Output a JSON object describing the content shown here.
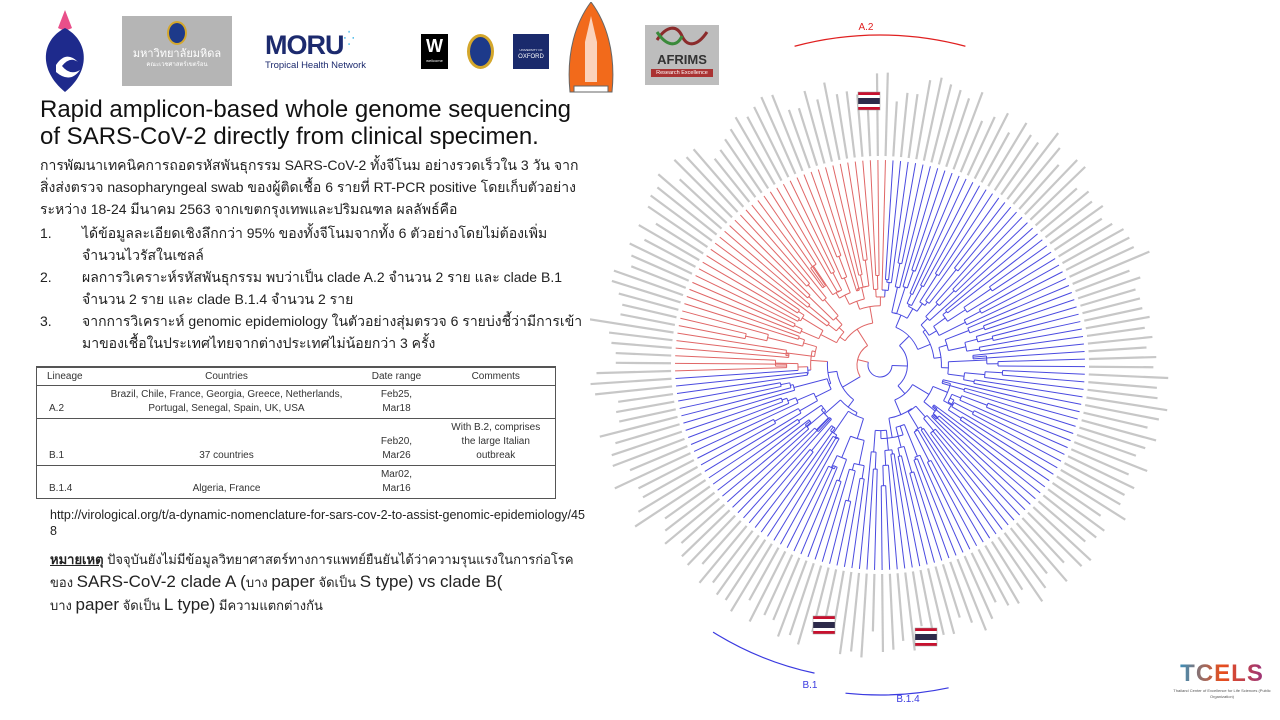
{
  "logos": {
    "mahidol_text": "มหาวิทยาลัยมหิดล",
    "mahidol_sub": "คณะเวชศาสตร์เขตร้อน",
    "moru": "MORU",
    "moru_sub": "Tropical Health Network",
    "wellcome": "W",
    "wellcome_sub": "wellcome",
    "oxford_sub": "UNIVERSITY OF",
    "oxford": "OXFORD",
    "afrims": "AFRIMS",
    "afrims_sub": "Research Excellence",
    "tcels": "TCELS",
    "tcels_sub": "Thailand Center of Excellence for Life Sciences (Public Organization)"
  },
  "title": "Rapid amplicon-based whole genome sequencing of SARS-CoV-2 directly  from clinical specimen.",
  "intro": "การพัฒนาเทคนิคการถอดรหัสพันธุกรรม  SARS-CoV-2  ทั้งจีโนม อย่างรวดเร็วใน 3 วัน จากสิ่งส่งตรวจ nasopharyngeal swab ของผู้ติดเชื้อ 6 รายที่ RT-PCR positive โดยเก็บตัวอย่างระหว่าง 18-24 มีนาคม 2563 จากเขตกรุงเทพและปริมณฑล  ผลลัพธ์คือ",
  "results": [
    {
      "num": "1.",
      "text": "ได้ข้อมูลละเอียดเชิงลึกกว่า 95% ของทั้งจีโนมจากทั้ง 6 ตัวอย่างโดยไม่ต้องเพิ่มจำนวนไวรัสในเซลล์"
    },
    {
      "num": "2.",
      "text": "ผลการวิเคราะห์รหัสพันธุกรรม  พบว่าเป็น clade A.2 จำนวน 2 ราย และ clade B.1 จำนวน 2 ราย และ clade B.1.4 จำนวน 2 ราย"
    },
    {
      "num": "3.",
      "text": "จากการวิเคราะห์  genomic epidemiology ในตัวอย่างสุ่มตรวจ 6 รายบ่งชี้ว่ามีการเข้ามาของเชื้อในประเทศไทยจากต่างประเทศไม่น้อยกว่า  3 ครั้ง"
    }
  ],
  "table": {
    "headers": [
      "Lineage",
      "Countries",
      "Date range",
      "Comments"
    ],
    "rows": [
      {
        "lineage": "A.2",
        "countries": "Brazil, Chile,  France, Georgia, Greece, Netherlands, Portugal, Senegal, Spain, UK, USA",
        "date1": "Feb25,",
        "date2": "Mar18",
        "comments": ""
      },
      {
        "lineage": "B.1",
        "countries": "37 countries",
        "date1": "Feb20,",
        "date2": "Mar26",
        "comments": "With B.2, comprises the large Italian outbreak"
      },
      {
        "lineage": "B.1.4",
        "countries": "Algeria, France",
        "date1": "Mar02,",
        "date2": "Mar16",
        "comments": ""
      }
    ]
  },
  "reference": "http://virological.org/t/a-dynamic-nomenclature-for-sars-cov-2-to-assist-genomic-epidemiology/458",
  "note": {
    "label": "หมายเหตุ",
    "line1": "ปัจจุบันยังไม่มีข้อมูลวิทยาศาสตร์ทางการแพทย์ยืนยันได้ว่าความรุนแรงในการก่อโรค",
    "p1": "ของ",
    "p2": "SARS-CoV-2  clade A (",
    "p3": "บาง",
    "p4": "paper",
    "p5": "จัดเป็น",
    "p6": "S type) vs clade B(",
    "p7": "บาง",
    "p8": "paper",
    "p9": "จัดเป็น",
    "p10": "L type)",
    "p11": "มีความแตกต่างกัน"
  },
  "tree": {
    "clades": [
      "A.2",
      "B.1",
      "B.1.4"
    ],
    "colors": {
      "clade_a": "#e06666",
      "clade_b": "#4a4ae0",
      "bracket": "#e02020",
      "bracket_b": "#3a3ae0"
    },
    "leaf_count": 170
  }
}
